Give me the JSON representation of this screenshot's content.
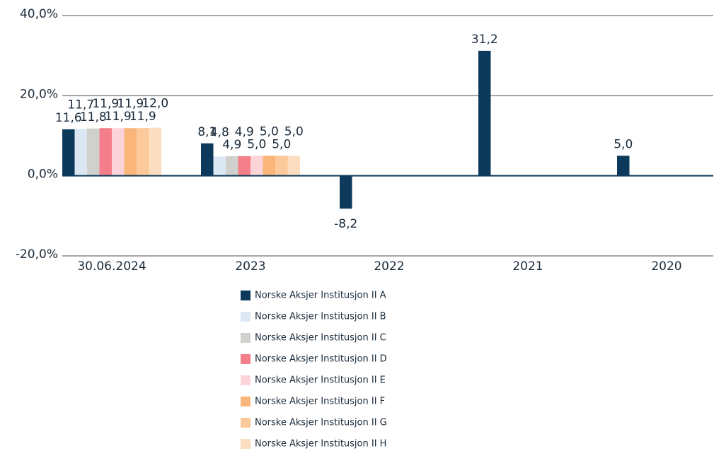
{
  "chart_data": {
    "type": "bar",
    "categories": [
      "30.06.2024",
      "2023",
      "2022",
      "2021",
      "2020"
    ],
    "series": [
      {
        "name": "Norske Aksjer Institusjon II A",
        "color": "#0d3a5a",
        "values": [
          11.6,
          8.1,
          -8.2,
          31.2,
          5.0
        ],
        "value_labels": [
          "11,6",
          "8,1",
          "-8,2",
          "31,2",
          "5,0"
        ]
      },
      {
        "name": "Norske Aksjer Institusjon II B",
        "color": "#dbe8f3",
        "values": [
          11.7,
          4.8,
          null,
          null,
          null
        ],
        "value_labels": [
          "11,7",
          "4,8",
          null,
          null,
          null
        ]
      },
      {
        "name": "Norske Aksjer Institusjon II C",
        "color": "#d0d0cc",
        "values": [
          11.8,
          4.9,
          null,
          null,
          null
        ],
        "value_labels": [
          "11,8",
          "4,9",
          null,
          null,
          null
        ]
      },
      {
        "name": "Norske Aksjer Institusjon II D",
        "color": "#f47f8a",
        "values": [
          11.9,
          4.9,
          null,
          null,
          null
        ],
        "value_labels": [
          "11,9",
          "4,9",
          null,
          null,
          null
        ]
      },
      {
        "name": "Norske Aksjer Institusjon II E",
        "color": "#fcd3d8",
        "values": [
          11.9,
          5.0,
          null,
          null,
          null
        ],
        "value_labels": [
          "11,9",
          "5,0",
          null,
          null,
          null
        ]
      },
      {
        "name": "Norske Aksjer Institusjon II F",
        "color": "#f9b57a",
        "values": [
          11.9,
          5.0,
          null,
          null,
          null
        ],
        "value_labels": [
          "11,9",
          "5,0",
          null,
          null,
          null
        ]
      },
      {
        "name": "Norske Aksjer Institusjon II G",
        "color": "#fbc99a",
        "values": [
          11.9,
          5.0,
          null,
          null,
          null
        ],
        "value_labels": [
          "11,9",
          "5,0",
          null,
          null,
          null
        ]
      },
      {
        "name": "Norske Aksjer Institusjon II H",
        "color": "#fdddc0",
        "values": [
          12.0,
          5.0,
          null,
          null,
          null
        ],
        "value_labels": [
          "12,0",
          "5,0",
          null,
          null,
          null
        ]
      }
    ],
    "ylim": [
      -20,
      40
    ],
    "yticks": [
      {
        "value": -20,
        "label": "-20,0%"
      },
      {
        "value": 0,
        "label": "0,0%"
      },
      {
        "value": 20,
        "label": "20,0%"
      },
      {
        "value": 40,
        "label": "40,0%"
      }
    ],
    "grid": true
  }
}
